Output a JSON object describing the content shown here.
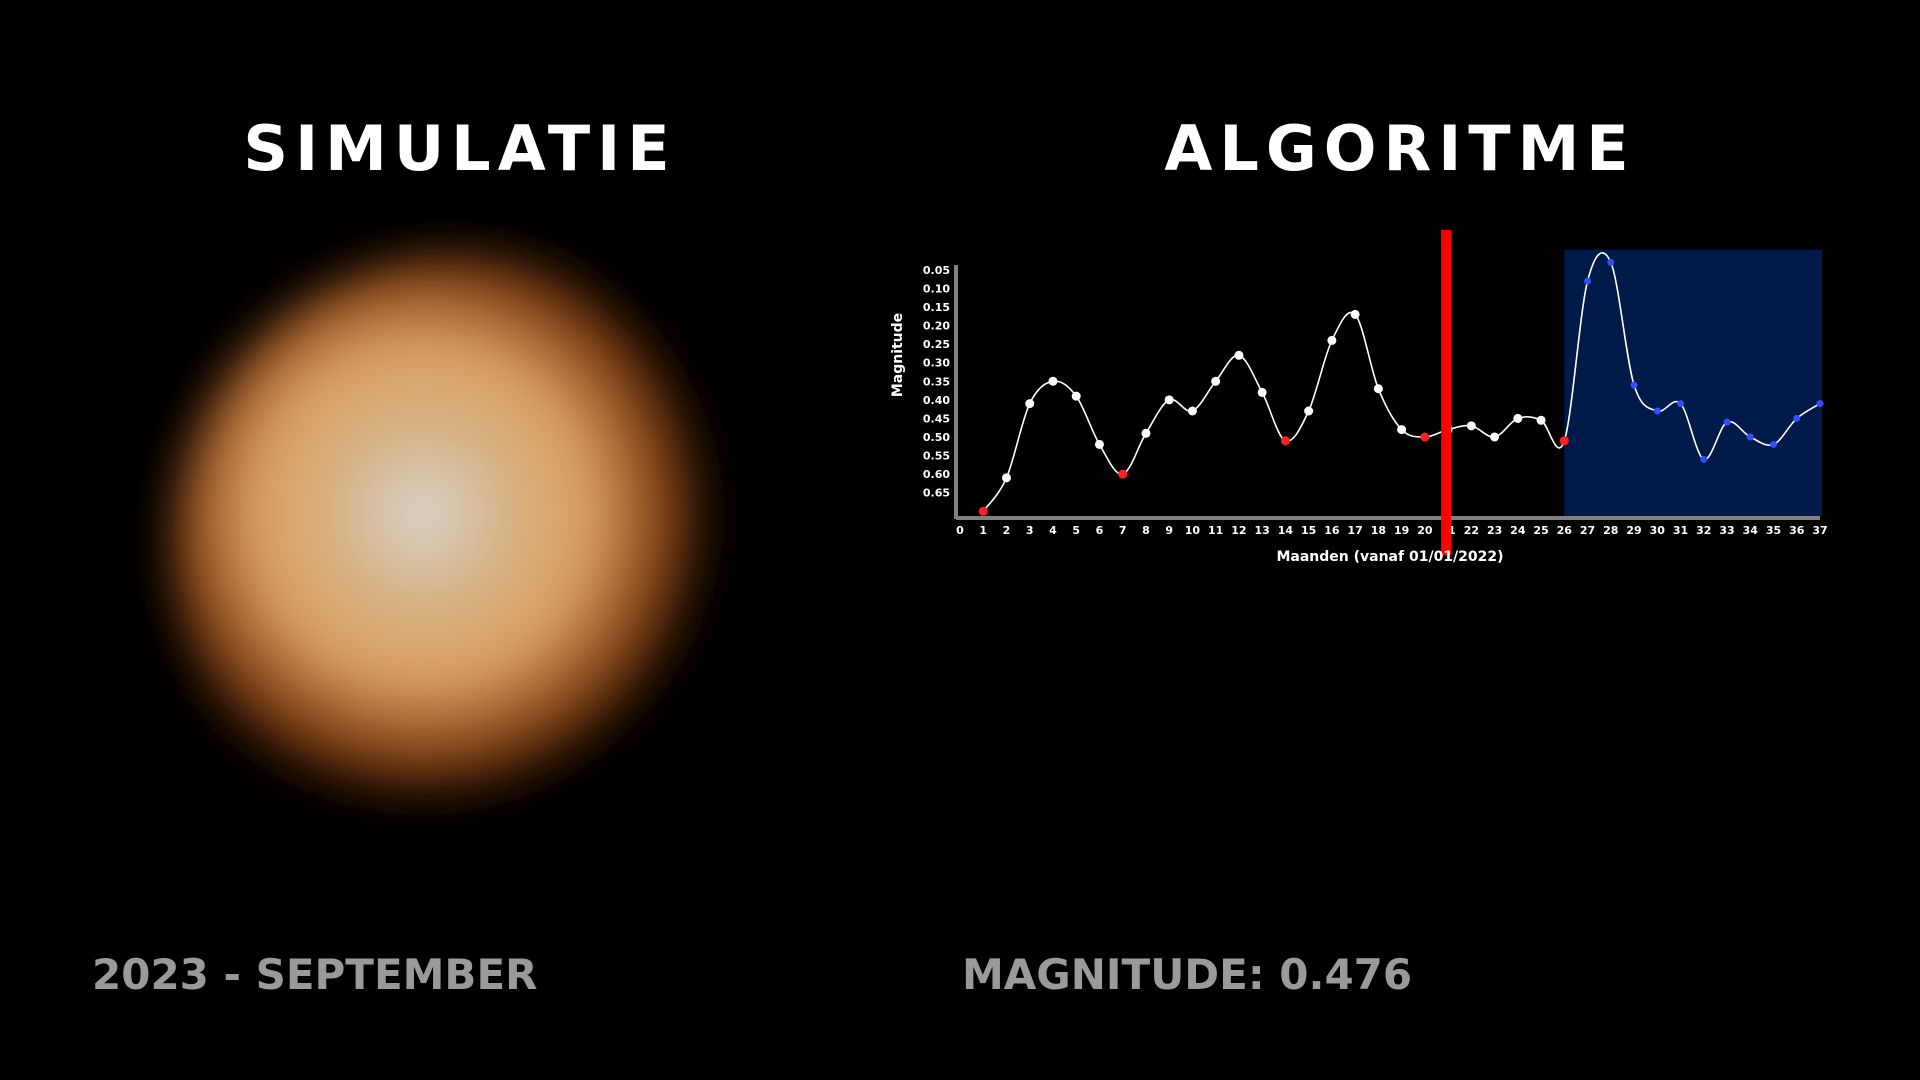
{
  "simulation": {
    "title": "SIMULATIE",
    "date_label": "2023 - SEPTEMBER"
  },
  "algorithm": {
    "title": "ALGORITME",
    "magnitude_label": "MAGNITUDE: 0.476"
  },
  "colors": {
    "background": "#000000",
    "curve": "#ffffff",
    "point": "#ffffff",
    "minimum_point": "#ff2020",
    "forecast_point": "#3050ff",
    "forecast_region": "#001a4a",
    "current_marker": "#ff0000",
    "axis": "#808080",
    "footer_text": "#9a9a9a",
    "star_core": "#d8d6d0",
    "star_mid": "#dba060",
    "star_edge": "#8a4515"
  },
  "chart_data": {
    "type": "line",
    "xlabel": "Maanden (vanaf 01/01/2022)",
    "ylabel": "Magnitude",
    "x_ticks": [
      0,
      1,
      2,
      3,
      4,
      5,
      6,
      7,
      8,
      9,
      10,
      11,
      12,
      13,
      14,
      15,
      16,
      17,
      18,
      19,
      20,
      21,
      22,
      23,
      24,
      25,
      26,
      27,
      28,
      29,
      30,
      31,
      32,
      33,
      34,
      35,
      36,
      37
    ],
    "y_ticks": [
      "0.05",
      "0.10",
      "0.15",
      "0.20",
      "0.25",
      "0.30",
      "0.35",
      "0.40",
      "0.45",
      "0.50",
      "0.55",
      "0.60",
      "0.65"
    ],
    "xlim": [
      0,
      37
    ],
    "ylim": [
      0.01,
      0.71
    ],
    "y_inverted": true,
    "current_month": 21,
    "forecast_from": 26,
    "points": [
      {
        "x": 1,
        "y": 0.7,
        "kind": "min"
      },
      {
        "x": 2,
        "y": 0.61,
        "kind": "normal"
      },
      {
        "x": 3,
        "y": 0.41,
        "kind": "normal"
      },
      {
        "x": 4,
        "y": 0.35,
        "kind": "normal"
      },
      {
        "x": 5,
        "y": 0.39,
        "kind": "normal"
      },
      {
        "x": 6,
        "y": 0.52,
        "kind": "normal"
      },
      {
        "x": 7,
        "y": 0.6,
        "kind": "min"
      },
      {
        "x": 8,
        "y": 0.49,
        "kind": "normal"
      },
      {
        "x": 9,
        "y": 0.4,
        "kind": "normal"
      },
      {
        "x": 10,
        "y": 0.43,
        "kind": "normal"
      },
      {
        "x": 11,
        "y": 0.35,
        "kind": "normal"
      },
      {
        "x": 12,
        "y": 0.28,
        "kind": "normal"
      },
      {
        "x": 13,
        "y": 0.38,
        "kind": "normal"
      },
      {
        "x": 14,
        "y": 0.51,
        "kind": "min"
      },
      {
        "x": 15,
        "y": 0.43,
        "kind": "normal"
      },
      {
        "x": 16,
        "y": 0.24,
        "kind": "normal"
      },
      {
        "x": 17,
        "y": 0.17,
        "kind": "normal"
      },
      {
        "x": 18,
        "y": 0.37,
        "kind": "normal"
      },
      {
        "x": 19,
        "y": 0.48,
        "kind": "normal"
      },
      {
        "x": 20,
        "y": 0.5,
        "kind": "min"
      },
      {
        "x": 21,
        "y": 0.48,
        "kind": "normal"
      },
      {
        "x": 22,
        "y": 0.47,
        "kind": "normal"
      },
      {
        "x": 23,
        "y": 0.5,
        "kind": "normal"
      },
      {
        "x": 24,
        "y": 0.45,
        "kind": "normal"
      },
      {
        "x": 25,
        "y": 0.455,
        "kind": "normal"
      },
      {
        "x": 26,
        "y": 0.51,
        "kind": "min"
      },
      {
        "x": 27,
        "y": 0.08,
        "kind": "forecast"
      },
      {
        "x": 28,
        "y": 0.03,
        "kind": "forecast"
      },
      {
        "x": 29,
        "y": 0.36,
        "kind": "forecast"
      },
      {
        "x": 30,
        "y": 0.43,
        "kind": "forecast"
      },
      {
        "x": 31,
        "y": 0.41,
        "kind": "forecast"
      },
      {
        "x": 32,
        "y": 0.56,
        "kind": "forecast"
      },
      {
        "x": 33,
        "y": 0.46,
        "kind": "forecast"
      },
      {
        "x": 34,
        "y": 0.5,
        "kind": "forecast"
      },
      {
        "x": 35,
        "y": 0.52,
        "kind": "forecast"
      },
      {
        "x": 36,
        "y": 0.45,
        "kind": "forecast"
      },
      {
        "x": 37,
        "y": 0.41,
        "kind": "forecast"
      }
    ]
  }
}
